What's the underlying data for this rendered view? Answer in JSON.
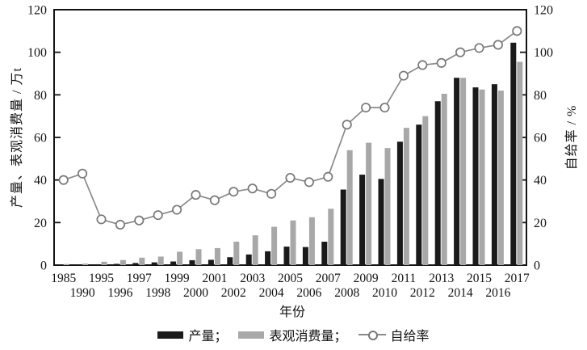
{
  "axes": {
    "left_title": "产量、表观消费量 / 万t",
    "right_title": "自给率 / %",
    "x_title": "年份"
  },
  "legend": {
    "items": [
      {
        "label": "产量；",
        "type": "bar-swatch",
        "color": "#1a1a1a"
      },
      {
        "label": "表观消费量；",
        "type": "bar-swatch",
        "color": "#a8a8a8"
      },
      {
        "label": "自给率",
        "type": "line-swatch",
        "color": "#8a8a8a"
      }
    ]
  },
  "chart_data": {
    "type": "bar",
    "subtype": "bar+line combo, dual axis",
    "title": "",
    "xlabel": "年份",
    "ylabel_left": "产量、表观消费量 / 万t",
    "ylabel_right": "自给率 / %",
    "ylim_left": [
      0,
      120
    ],
    "ylim_right": [
      0,
      120
    ],
    "yticks": [
      0,
      20,
      40,
      60,
      80,
      100,
      120
    ],
    "grid": false,
    "legend_position": "bottom",
    "categories": [
      "1985",
      "1990",
      "1995",
      "1996",
      "1997",
      "1998",
      "1999",
      "2000",
      "2001",
      "2002",
      "2003",
      "2004",
      "2005",
      "2006",
      "2007",
      "2008",
      "2009",
      "2010",
      "2011",
      "2012",
      "2013",
      "2014",
      "2015",
      "2016",
      "2017"
    ],
    "series": [
      {
        "name": "产量",
        "type": "bar",
        "axis": "left",
        "color": "#1a1a1a",
        "values": [
          0.2,
          0.3,
          0.4,
          0.6,
          1.0,
          1.3,
          1.7,
          2.3,
          2.5,
          3.7,
          5.0,
          6.5,
          8.7,
          8.5,
          11.0,
          35.5,
          42.5,
          40.5,
          58.0,
          66.0,
          77.0,
          88.0,
          83.5,
          85.0,
          104.5
        ]
      },
      {
        "name": "表观消费量",
        "type": "bar",
        "axis": "left",
        "color": "#a8a8a8",
        "values": [
          0.5,
          0.7,
          1.6,
          2.4,
          3.5,
          4.0,
          6.3,
          7.5,
          8.0,
          11.0,
          14.0,
          18.0,
          21.0,
          22.5,
          26.5,
          54.0,
          57.5,
          55.0,
          64.5,
          70.0,
          80.5,
          88.0,
          82.5,
          82.0,
          95.5
        ]
      },
      {
        "name": "自给率",
        "type": "line",
        "axis": "right",
        "color": "#8a8a8a",
        "marker": "open-circle",
        "values": [
          40,
          43,
          21.5,
          19,
          21,
          23.5,
          26,
          33,
          30.5,
          34.5,
          36,
          33.5,
          41,
          39,
          41.5,
          66,
          74,
          74,
          89,
          94,
          95,
          100,
          102,
          103.5,
          110
        ]
      }
    ]
  }
}
